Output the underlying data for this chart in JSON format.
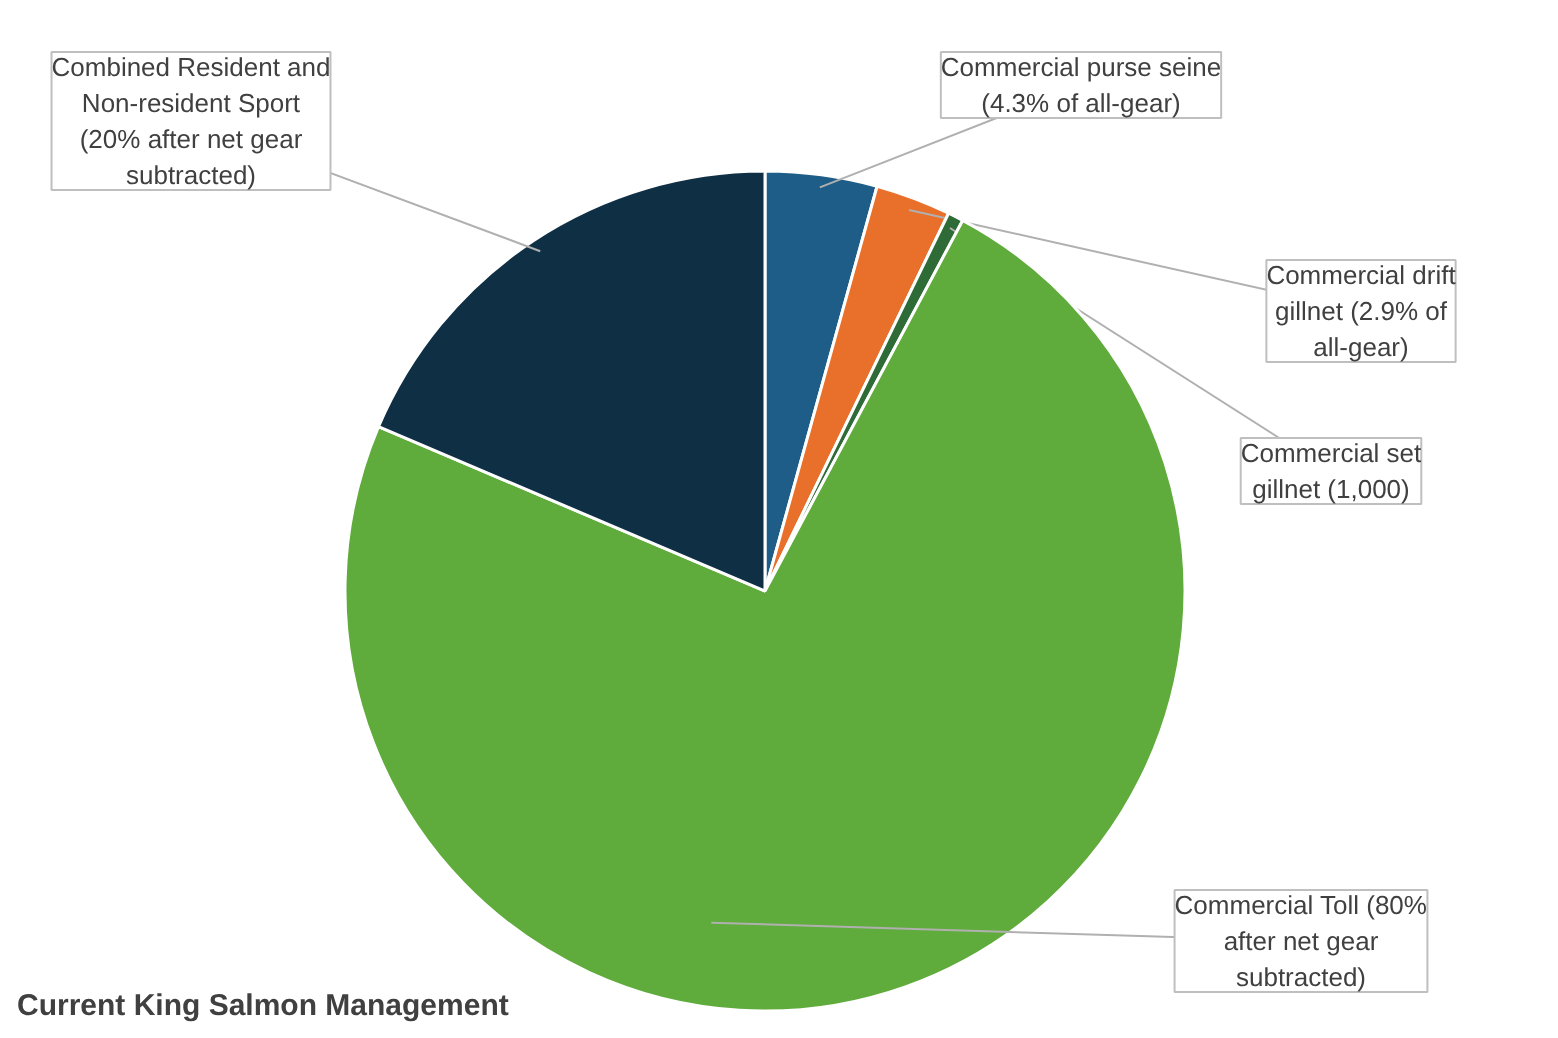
{
  "chart_data": {
    "type": "pie",
    "title": "Current King Salmon Management",
    "categories": [
      "Commercial purse seine (4.3% of all-gear)",
      "Commercial drift gillnet (2.9% of all-gear)",
      "Commercial set gillnet (1,000)",
      "Commercial Toll (80% after net gear subtracted)",
      "Combined Resident and Non-resident Sport (20% after net gear subtracted)"
    ],
    "values": [
      4.3,
      2.9,
      0.6,
      73.6,
      18.6
    ],
    "colors": [
      "#1e5d87",
      "#e8702a",
      "#2e6b36",
      "#5fab3b",
      "#0f2f45"
    ]
  }
}
